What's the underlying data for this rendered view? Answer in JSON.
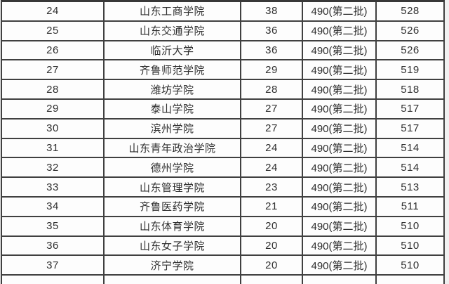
{
  "colors": {
    "table_border": "#404040",
    "cell_background": "#fdfdfd",
    "page_background": "#f1f1f1",
    "text": "#2f2f2f"
  },
  "chart_data": {
    "type": "table",
    "title": "",
    "header_visible": false,
    "rows": [
      [
        "24",
        "山东工商学院",
        "38",
        "490(第二批)",
        "528"
      ],
      [
        "25",
        "山东交通学院",
        "36",
        "490(第二批)",
        "526"
      ],
      [
        "26",
        "临沂大学",
        "36",
        "490(第二批)",
        "526"
      ],
      [
        "27",
        "齐鲁师范学院",
        "29",
        "490(第二批)",
        "519"
      ],
      [
        "28",
        "潍坊学院",
        "28",
        "490(第二批)",
        "518"
      ],
      [
        "29",
        "泰山学院",
        "27",
        "490(第二批)",
        "517"
      ],
      [
        "30",
        "滨州学院",
        "27",
        "490(第二批)",
        "517"
      ],
      [
        "31",
        "山东青年政治学院",
        "24",
        "490(第二批)",
        "514"
      ],
      [
        "32",
        "德州学院",
        "24",
        "490(第二批)",
        "514"
      ],
      [
        "33",
        "山东管理学院",
        "23",
        "490(第二批)",
        "513"
      ],
      [
        "34",
        "齐鲁医药学院",
        "21",
        "490(第二批)",
        "511"
      ],
      [
        "35",
        "山东体育学院",
        "20",
        "490(第二批)",
        "510"
      ],
      [
        "36",
        "山东女子学院",
        "20",
        "490(第二批)",
        "510"
      ],
      [
        "37",
        "济宁学院",
        "20",
        "490(第二批)",
        "510"
      ]
    ],
    "partial_next_row_visible": true
  }
}
